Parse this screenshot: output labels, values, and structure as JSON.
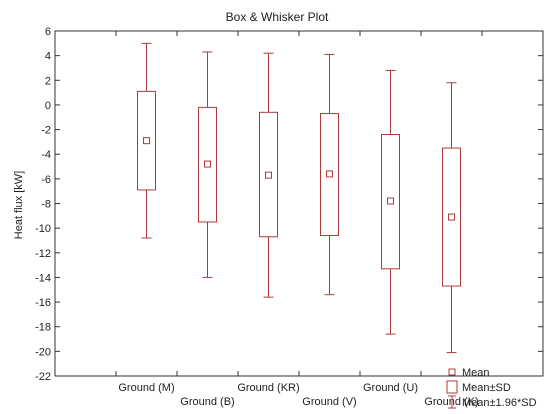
{
  "chart_data": {
    "type": "box",
    "title": "Box & Whisker Plot",
    "ylabel": "Heat flux [kW]",
    "xlabel": "",
    "ylim": [
      -22,
      6
    ],
    "yticks": [
      6,
      4,
      2,
      0,
      -2,
      -4,
      -6,
      -8,
      -10,
      -12,
      -14,
      -16,
      -18,
      -20,
      -22
    ],
    "grid": false,
    "legend_position": "bottom-right",
    "color": "#b03a3a",
    "categories": [
      "Ground (M)",
      "Ground (B)",
      "Ground (KR)",
      "Ground (V)",
      "Ground (U)",
      "Ground (K)"
    ],
    "series": [
      {
        "category": "Ground (M)",
        "mean": -2.9,
        "sd_low": -6.9,
        "sd_high": 1.1,
        "ci_low": -10.8,
        "ci_high": 5.0
      },
      {
        "category": "Ground (B)",
        "mean": -4.8,
        "sd_low": -9.5,
        "sd_high": -0.2,
        "ci_low": -14.0,
        "ci_high": 4.3
      },
      {
        "category": "Ground (KR)",
        "mean": -5.7,
        "sd_low": -10.7,
        "sd_high": -0.6,
        "ci_low": -15.6,
        "ci_high": 4.2
      },
      {
        "category": "Ground (V)",
        "mean": -5.6,
        "sd_low": -10.6,
        "sd_high": -0.7,
        "ci_low": -15.4,
        "ci_high": 4.1
      },
      {
        "category": "Ground (U)",
        "mean": -7.8,
        "sd_low": -13.3,
        "sd_high": -2.4,
        "ci_low": -18.6,
        "ci_high": 2.8
      },
      {
        "category": "Ground (K)",
        "mean": -9.1,
        "sd_low": -14.7,
        "sd_high": -3.5,
        "ci_low": -20.1,
        "ci_high": 1.8
      }
    ],
    "legend": [
      {
        "key": "mean",
        "label": "Mean"
      },
      {
        "key": "sd",
        "label": "Mean±SD"
      },
      {
        "key": "ci",
        "label": "Mean±1.96*SD"
      }
    ]
  }
}
